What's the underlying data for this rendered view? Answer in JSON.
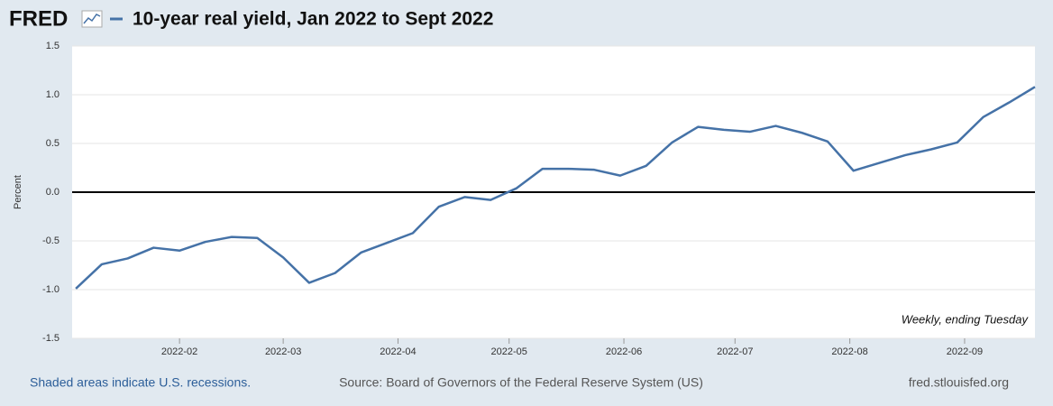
{
  "logo": "FRED",
  "chart_data": {
    "type": "line",
    "y_label": "Percent",
    "annotation": "Weekly, ending Tuesday",
    "x": [
      "2022-01-04",
      "2022-01-11",
      "2022-01-18",
      "2022-01-25",
      "2022-02-01",
      "2022-02-08",
      "2022-02-15",
      "2022-02-22",
      "2022-03-01",
      "2022-03-08",
      "2022-03-15",
      "2022-03-22",
      "2022-03-29",
      "2022-04-05",
      "2022-04-12",
      "2022-04-19",
      "2022-04-26",
      "2022-05-03",
      "2022-05-10",
      "2022-05-17",
      "2022-05-24",
      "2022-05-31",
      "2022-06-07",
      "2022-06-14",
      "2022-06-21",
      "2022-06-28",
      "2022-07-05",
      "2022-07-12",
      "2022-07-19",
      "2022-07-26",
      "2022-08-02",
      "2022-08-09",
      "2022-08-16",
      "2022-08-23",
      "2022-08-30",
      "2022-09-06",
      "2022-09-13",
      "2022-09-20"
    ],
    "series": [
      {
        "name": "10-year real yield, Jan 2022 to Sept 2022",
        "color": "#4572a7",
        "values": [
          -0.99,
          -0.74,
          -0.68,
          -0.57,
          -0.6,
          -0.51,
          -0.46,
          -0.47,
          -0.67,
          -0.93,
          -0.83,
          -0.62,
          -0.52,
          -0.42,
          -0.15,
          -0.05,
          -0.08,
          0.04,
          0.24,
          0.24,
          0.23,
          0.17,
          0.27,
          0.51,
          0.67,
          0.64,
          0.62,
          0.68,
          0.61,
          0.52,
          0.22,
          0.3,
          0.38,
          0.44,
          0.51,
          0.77,
          0.92,
          1.08
        ]
      }
    ],
    "xlim": [
      "2022-01-03",
      "2022-09-20"
    ],
    "xticks": [
      "2022-02",
      "2022-03",
      "2022-04",
      "2022-05",
      "2022-06",
      "2022-07",
      "2022-08",
      "2022-09"
    ],
    "ylim": [
      -1.5,
      1.5
    ],
    "yticks": [
      -1.5,
      {
        "value": -1,
        "label": "-1.0"
      },
      -0.5,
      {
        "value": 0,
        "label": "0.0"
      },
      0.5,
      {
        "value": 1,
        "label": "1.0"
      },
      1.5
    ],
    "grid": true,
    "zero_line": true
  },
  "footer": {
    "recessions": "Shaded areas indicate U.S. recessions.",
    "source": "Source: Board of Governors of the Federal Reserve System (US)",
    "site": "fred.stlouisfed.org"
  }
}
